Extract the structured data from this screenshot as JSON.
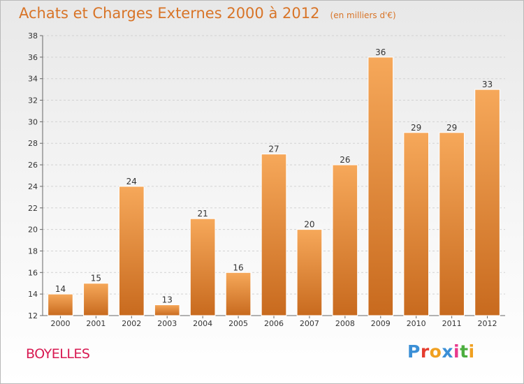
{
  "title": "Achats et Charges Externes 2000 à 2012",
  "subtitle": "(en milliers d'€)",
  "commune": "BOYELLES",
  "logo": {
    "text": "Proxiti",
    "letters": [
      {
        "ch": "P",
        "color": "#3b8fd6"
      },
      {
        "ch": "r",
        "color": "#e53d2f"
      },
      {
        "ch": "o",
        "color": "#f0a020"
      },
      {
        "ch": "x",
        "color": "#3b8fd6"
      },
      {
        "ch": "i",
        "color": "#e8398c"
      },
      {
        "ch": "t",
        "color": "#4cae3e"
      },
      {
        "ch": "i",
        "color": "#f0a020"
      }
    ]
  },
  "colors": {
    "accent": "#d87427",
    "bar_top": "#f6a85a",
    "bar_bottom": "#c86a1e",
    "commune": "#d81a52"
  },
  "chart_data": {
    "type": "bar",
    "title": "Achats et Charges Externes 2000 à 2012",
    "subtitle": "(en milliers d'€)",
    "categories": [
      "2000",
      "2001",
      "2002",
      "2003",
      "2004",
      "2005",
      "2006",
      "2007",
      "2008",
      "2009",
      "2010",
      "2011",
      "2012"
    ],
    "values": [
      14,
      15,
      24,
      13,
      21,
      16,
      27,
      20,
      26,
      36,
      29,
      29,
      33
    ],
    "ylim": [
      12,
      38
    ],
    "yticks": [
      12,
      14,
      16,
      18,
      20,
      22,
      24,
      26,
      28,
      30,
      32,
      34,
      36,
      38
    ],
    "grid": true,
    "xlabel": "",
    "ylabel": ""
  }
}
